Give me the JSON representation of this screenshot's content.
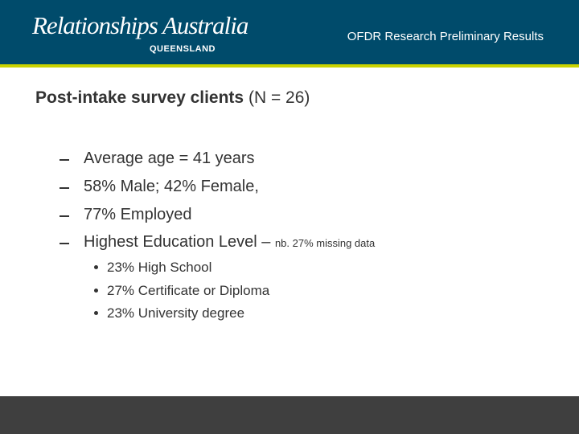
{
  "header": {
    "logo": "Relationships Australia",
    "logo_sub": "QUEENSLAND",
    "subtitle": "OFDR Research Preliminary Results"
  },
  "title": {
    "bold": "Post-intake survey clients",
    "rest": "(N = 26)"
  },
  "bullets": [
    {
      "text": "Average age = 41 years"
    },
    {
      "text": "58% Male; 42% Female,"
    },
    {
      "text": "77% Employed"
    },
    {
      "text": "Highest Education Level –",
      "note": "nb. 27% missing data"
    }
  ],
  "sub_bullets": [
    "23% High School",
    "27% Certificate or Diploma",
    "23% University degree"
  ]
}
